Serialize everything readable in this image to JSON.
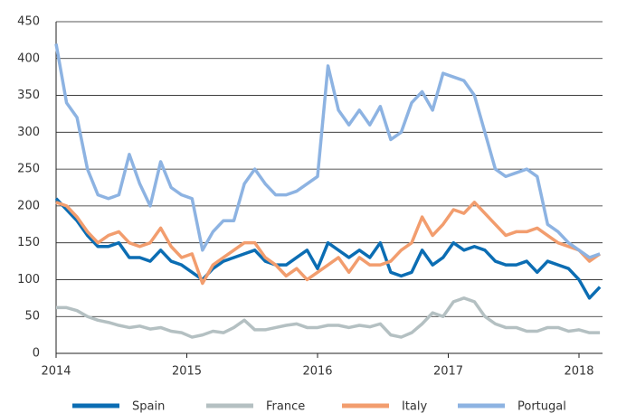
{
  "chart_data": {
    "type": "line",
    "x": [
      2014,
      2014.08,
      2014.16,
      2014.24,
      2014.32,
      2014.4,
      2014.48,
      2014.56,
      2014.64,
      2014.72,
      2014.8,
      2014.88,
      2014.96,
      2015.04,
      2015.12,
      2015.2,
      2015.28,
      2015.36,
      2015.44,
      2015.52,
      2015.6,
      2015.68,
      2015.76,
      2015.84,
      2015.92,
      2016,
      2016.08,
      2016.16,
      2016.24,
      2016.32,
      2016.4,
      2016.48,
      2016.56,
      2016.64,
      2016.72,
      2016.8,
      2016.88,
      2016.96,
      2017.04,
      2017.12,
      2017.2,
      2017.28,
      2017.36,
      2017.44,
      2017.52,
      2017.6,
      2017.68,
      2017.76,
      2017.84,
      2017.92,
      2018,
      2018.08,
      2018.16
    ],
    "series": [
      {
        "name": "Spain",
        "color": "#0b6db3",
        "values": [
          210,
          195,
          180,
          160,
          145,
          145,
          150,
          130,
          130,
          125,
          140,
          125,
          120,
          110,
          100,
          115,
          125,
          130,
          135,
          140,
          125,
          120,
          120,
          130,
          140,
          115,
          150,
          140,
          130,
          140,
          130,
          150,
          110,
          105,
          110,
          140,
          120,
          130,
          150,
          140,
          145,
          140,
          125,
          120,
          120,
          125,
          110,
          125,
          120,
          115,
          100,
          75,
          90
        ]
      },
      {
        "name": "France",
        "color": "#b4c0c2",
        "values": [
          62,
          62,
          58,
          50,
          45,
          42,
          38,
          35,
          37,
          33,
          35,
          30,
          28,
          22,
          25,
          30,
          28,
          35,
          45,
          32,
          32,
          35,
          38,
          40,
          35,
          35,
          38,
          38,
          35,
          38,
          36,
          40,
          25,
          22,
          28,
          40,
          55,
          50,
          70,
          75,
          70,
          50,
          40,
          35,
          35,
          30,
          30,
          35,
          35,
          30,
          32,
          28,
          28
        ]
      },
      {
        "name": "Italy",
        "color": "#f29d6e",
        "values": [
          205,
          200,
          185,
          165,
          150,
          160,
          165,
          150,
          145,
          150,
          170,
          145,
          130,
          135,
          95,
          120,
          130,
          140,
          150,
          150,
          130,
          120,
          105,
          115,
          100,
          110,
          120,
          130,
          110,
          130,
          120,
          120,
          125,
          140,
          150,
          185,
          160,
          175,
          195,
          190,
          205,
          190,
          175,
          160,
          165,
          165,
          170,
          160,
          150,
          145,
          140,
          125,
          135
        ]
      },
      {
        "name": "Portugal",
        "color": "#8db3e2",
        "values": [
          420,
          340,
          320,
          250,
          215,
          210,
          215,
          270,
          230,
          200,
          260,
          225,
          215,
          210,
          140,
          165,
          180,
          180,
          230,
          250,
          230,
          215,
          215,
          220,
          230,
          240,
          390,
          330,
          310,
          330,
          310,
          335,
          290,
          300,
          340,
          355,
          330,
          380,
          375,
          370,
          350,
          300,
          250,
          240,
          245,
          250,
          240,
          175,
          165,
          150,
          140,
          130,
          135
        ]
      }
    ],
    "xlim": [
      2014,
      2018.18
    ],
    "xticks": [
      2014,
      2015,
      2016,
      2017,
      2018
    ],
    "ylim": [
      0,
      450
    ],
    "yticks": [
      0,
      50,
      100,
      150,
      200,
      250,
      300,
      350,
      400,
      450
    ],
    "grid": true
  }
}
